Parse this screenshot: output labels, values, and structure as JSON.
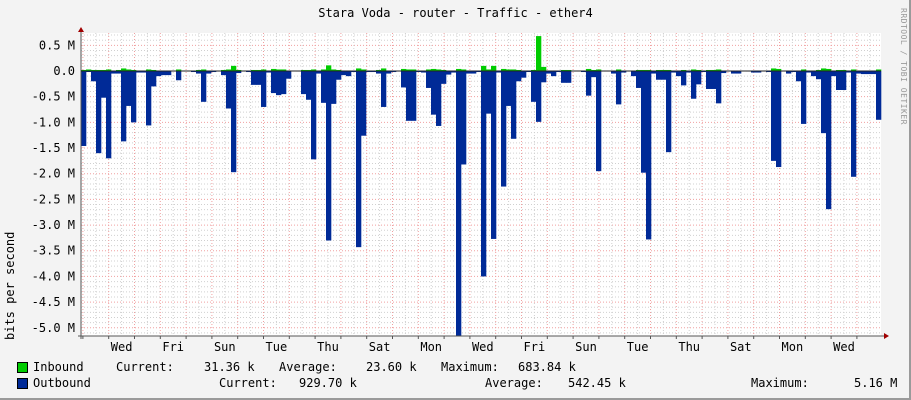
{
  "title": "Stara Voda - router - Traffic - ether4",
  "credit": "RRDTOOL / TOBI OETIKER",
  "colors": {
    "inbound": "#00cc00",
    "outbound": "#002a97",
    "major_grid": "#f0a0a0",
    "minor_grid": "#d0d0d0"
  },
  "legend": {
    "inbound": {
      "label": "Inbound",
      "current_label": "Current:",
      "current": "31.36 k",
      "average_label": "Average:",
      "average": "23.60 k",
      "maximum_label": "Maximum:",
      "maximum": "683.84 k"
    },
    "outbound": {
      "label": "Outbound",
      "current_label": "Current:",
      "current": "929.70 k",
      "average_label": "Average:",
      "average": "542.45 k",
      "maximum_label": "Maximum:",
      "maximum": "5.16 M"
    }
  },
  "chart_data": {
    "type": "area",
    "title": "Stara Voda - router - Traffic - ether4",
    "ylabel": "bits per second",
    "xlabel": "",
    "ylim": [
      -5.16,
      0.74
    ],
    "y_unit": "M",
    "y_ticks": [
      "0.5 M",
      "0.0",
      "-0.5 M",
      "-1.0 M",
      "-1.5 M",
      "-2.0 M",
      "-2.5 M",
      "-3.0 M",
      "-3.5 M",
      "-4.0 M",
      "-4.5 M",
      "-5.0 M"
    ],
    "y_tick_values": [
      0.5,
      0,
      -0.5,
      -1,
      -1.5,
      -2,
      -2.5,
      -3,
      -3.5,
      -4,
      -4.5,
      -5
    ],
    "x_ticks": [
      "Wed",
      "Fri",
      "Sun",
      "Tue",
      "Thu",
      "Sat",
      "Mon",
      "Wed",
      "Fri",
      "Sun",
      "Tue",
      "Thu",
      "Sat",
      "Mon",
      "Wed"
    ],
    "grid": true,
    "legend_position": "bottom",
    "series": [
      {
        "name": "Inbound",
        "color": "#00cc00",
        "values": [
          0.02,
          0.03,
          0.02,
          0.02,
          0.02,
          0.03,
          0.01,
          0.02,
          0.05,
          0.03,
          0.02,
          0.01,
          0.01,
          0.03,
          0.02,
          0.01,
          0.01,
          0.01,
          0,
          0.03,
          0,
          0,
          0.01,
          0.02,
          0.03,
          0.01,
          0,
          0,
          0.02,
          0.03,
          0.1,
          0.02,
          0,
          0,
          0.02,
          0.02,
          0.03,
          0.01,
          0.04,
          0.03,
          0.03,
          0.01,
          0,
          0,
          0.02,
          0.02,
          0.03,
          0.01,
          0.03,
          0.11,
          0.03,
          0.02,
          0.01,
          0.01,
          0,
          0.05,
          0.03,
          0,
          0,
          0.02,
          0.05,
          0.01,
          0,
          0,
          0.04,
          0.03,
          0.03,
          0,
          0.01,
          0.03,
          0.04,
          0.03,
          0.02,
          0.01,
          0,
          0.04,
          0.03,
          0.01,
          0,
          0.01,
          0.1,
          0.03,
          0.1,
          0.01,
          0.04,
          0.03,
          0.03,
          0.02,
          0.01,
          0,
          0.02,
          0.68,
          0.08,
          0.01,
          0.01,
          0,
          0.02,
          0.02,
          0,
          0,
          0.01,
          0.04,
          0.02,
          0.03,
          0,
          0,
          0.01,
          0.03,
          0.01,
          0,
          0.01,
          0.02,
          0.02,
          0.02,
          0.01,
          0.02,
          0.02,
          0.02,
          0,
          0.01,
          0.02,
          0.01,
          0.03,
          0.02,
          0,
          0.02,
          0.02,
          0.03,
          0.01,
          0,
          0,
          0,
          0,
          0,
          0,
          0.01,
          0,
          0.01,
          0.05,
          0.04,
          0,
          0.01,
          0,
          0.01,
          0.03,
          0.01,
          0.01,
          0.02,
          0.05,
          0.04,
          0.01,
          0.02,
          0.02,
          0.01,
          0.03,
          0.01,
          0.01,
          0.01,
          0.01,
          0.03
        ]
      },
      {
        "name": "Outbound",
        "color": "#002a97",
        "values": [
          -1.46,
          -0.02,
          -0.2,
          -1.6,
          -0.52,
          -1.7,
          -0.05,
          -0.05,
          -1.37,
          -0.68,
          -1.0,
          -0.03,
          -0.03,
          -1.06,
          -0.3,
          -0.1,
          -0.08,
          -0.08,
          -0.01,
          -0.18,
          0,
          0,
          -0.02,
          -0.05,
          -0.6,
          -0.05,
          -0.02,
          -0.01,
          -0.08,
          -0.73,
          -1.97,
          -0.04,
          -0.01,
          -0.02,
          -0.27,
          -0.27,
          -0.7,
          -0.03,
          -0.43,
          -0.47,
          -0.45,
          -0.15,
          0,
          -0.01,
          -0.45,
          -0.56,
          -1.72,
          -0.05,
          -0.62,
          -3.3,
          -0.64,
          -0.17,
          -0.08,
          -0.1,
          -0.02,
          -3.43,
          -1.26,
          -0.02,
          -0.02,
          -0.05,
          -0.7,
          -0.05,
          -0.02,
          -0.01,
          -0.32,
          -0.97,
          -0.97,
          -0.02,
          -0.03,
          -0.33,
          -0.85,
          -1.07,
          -0.25,
          -0.07,
          -0.03,
          -5.16,
          -1.82,
          -0.05,
          -0.05,
          -0.02,
          -4.0,
          -0.83,
          -3.27,
          -0.03,
          -2.25,
          -0.68,
          -1.32,
          -0.2,
          -0.13,
          -0.02,
          -0.6,
          -0.99,
          -0.22,
          -0.05,
          -0.1,
          -0.02,
          -0.23,
          -0.23,
          0,
          0,
          -0.02,
          -0.48,
          -0.12,
          -1.95,
          -0.01,
          -0.01,
          -0.05,
          -0.65,
          -0.03,
          -0.01,
          -0.1,
          -0.33,
          -1.98,
          -3.28,
          -0.05,
          -0.17,
          -0.17,
          -1.58,
          -0.03,
          -0.1,
          -0.28,
          -0.03,
          -0.54,
          -0.26,
          -0.02,
          -0.35,
          -0.35,
          -0.63,
          -0.04,
          -0.01,
          -0.05,
          -0.05,
          0,
          -0.01,
          -0.03,
          -0.03,
          -0.01,
          -0.02,
          -1.75,
          -1.87,
          -0.01,
          -0.05,
          -0.02,
          -0.2,
          -1.03,
          -0.03,
          -0.1,
          -0.16,
          -1.21,
          -2.69,
          -0.1,
          -0.37,
          -0.37,
          -0.03,
          -2.06,
          -0.05,
          -0.06,
          -0.06,
          -0.06,
          -0.95
        ]
      }
    ]
  }
}
